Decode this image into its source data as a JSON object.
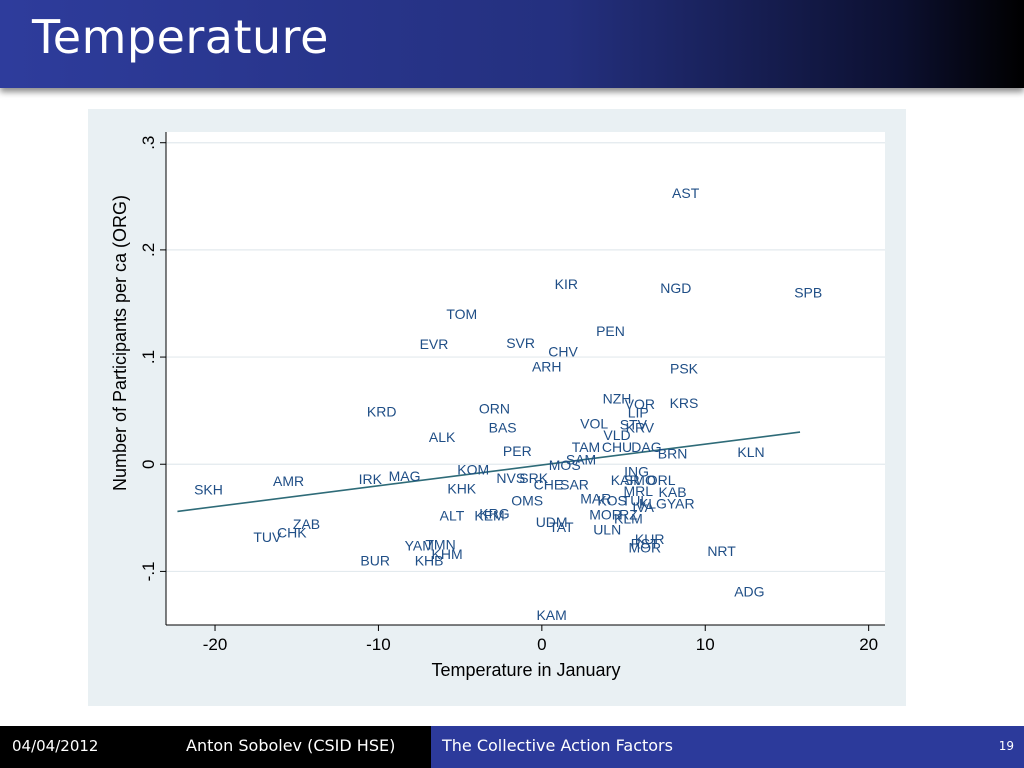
{
  "slide": {
    "title": "Temperature",
    "footer_date": "04/04/2012",
    "footer_author": "Anton Sobolev (CSID HSE)",
    "footer_topic": "The Collective Action Factors",
    "page_number": "19"
  },
  "colors": {
    "title_bar": "#2e3c9c",
    "footer_topic_bg": "#2c3a9b",
    "chart_bg": "#e9f0f3",
    "point_label": "#1f4e86",
    "fit_line": "#2e6b78"
  },
  "chart_data": {
    "type": "scatter",
    "title": "",
    "xlabel": "Temperature in January",
    "ylabel": "Number of Participants per ca (ORG)",
    "xlim": [
      -23,
      21
    ],
    "ylim": [
      -0.15,
      0.31
    ],
    "xticks": [
      {
        "value": -20,
        "label": "-20"
      },
      {
        "value": -10,
        "label": "-10"
      },
      {
        "value": 0,
        "label": "0"
      },
      {
        "value": 10,
        "label": "10"
      },
      {
        "value": 20,
        "label": "20"
      }
    ],
    "yticks": [
      {
        "value": -0.1,
        "label": "-.1"
      },
      {
        "value": 0,
        "label": "0"
      },
      {
        "value": 0.1,
        "label": ".1"
      },
      {
        "value": 0.2,
        "label": ".2"
      },
      {
        "value": 0.3,
        "label": ".3"
      }
    ],
    "grid": true,
    "fit_line": {
      "x": [
        -22.3,
        15.8
      ],
      "y": [
        -0.044,
        0.03
      ]
    },
    "points": [
      {
        "label": "AST",
        "x": 8.8,
        "y": 0.252
      },
      {
        "label": "KIR",
        "x": 1.5,
        "y": 0.167
      },
      {
        "label": "NGD",
        "x": 8.2,
        "y": 0.163
      },
      {
        "label": "SPB",
        "x": 16.3,
        "y": 0.159
      },
      {
        "label": "TOM",
        "x": -4.9,
        "y": 0.139
      },
      {
        "label": "PEN",
        "x": 4.2,
        "y": 0.123
      },
      {
        "label": "EVR",
        "x": -6.6,
        "y": 0.111
      },
      {
        "label": "SVR",
        "x": -1.3,
        "y": 0.112
      },
      {
        "label": "CHV",
        "x": 1.3,
        "y": 0.104
      },
      {
        "label": "ARH",
        "x": 0.3,
        "y": 0.09
      },
      {
        "label": "PSK",
        "x": 8.7,
        "y": 0.088
      },
      {
        "label": "NZH",
        "x": 4.6,
        "y": 0.06
      },
      {
        "label": "VOR",
        "x": 6.0,
        "y": 0.055
      },
      {
        "label": "KRS",
        "x": 8.7,
        "y": 0.056
      },
      {
        "label": "LIP",
        "x": 5.9,
        "y": 0.047
      },
      {
        "label": "KRD",
        "x": -9.8,
        "y": 0.048
      },
      {
        "label": "ORN",
        "x": -2.9,
        "y": 0.051
      },
      {
        "label": "VOL",
        "x": 3.2,
        "y": 0.037
      },
      {
        "label": "STV",
        "x": 5.6,
        "y": 0.036
      },
      {
        "label": "KRV",
        "x": 6.0,
        "y": 0.033
      },
      {
        "label": "BAS",
        "x": -2.4,
        "y": 0.033
      },
      {
        "label": "VLD",
        "x": 4.6,
        "y": 0.026
      },
      {
        "label": "ALK",
        "x": -6.1,
        "y": 0.024
      },
      {
        "label": "TAM",
        "x": 2.7,
        "y": 0.015
      },
      {
        "label": "CHU",
        "x": 4.6,
        "y": 0.015
      },
      {
        "label": "DAG",
        "x": 6.4,
        "y": 0.015
      },
      {
        "label": "KLN",
        "x": 12.8,
        "y": 0.01
      },
      {
        "label": "BRN",
        "x": 8.0,
        "y": 0.009
      },
      {
        "label": "PER",
        "x": -1.5,
        "y": 0.011
      },
      {
        "label": "SAM",
        "x": 2.4,
        "y": 0.003
      },
      {
        "label": "MOS",
        "x": 1.4,
        "y": -0.002
      },
      {
        "label": "KOM",
        "x": -4.2,
        "y": -0.006
      },
      {
        "label": "ING",
        "x": 5.8,
        "y": -0.008
      },
      {
        "label": "MAG",
        "x": -8.4,
        "y": -0.012
      },
      {
        "label": "IRK",
        "x": -10.5,
        "y": -0.015
      },
      {
        "label": "NVS",
        "x": -1.9,
        "y": -0.014
      },
      {
        "label": "SRK",
        "x": -0.5,
        "y": -0.014
      },
      {
        "label": "AMR",
        "x": -15.5,
        "y": -0.017
      },
      {
        "label": "KAR",
        "x": 5.1,
        "y": -0.016
      },
      {
        "label": "SMO",
        "x": 6.0,
        "y": -0.016
      },
      {
        "label": "ORL",
        "x": 7.3,
        "y": -0.016
      },
      {
        "label": "CHE",
        "x": 0.4,
        "y": -0.02
      },
      {
        "label": "SAR",
        "x": 2.0,
        "y": -0.02
      },
      {
        "label": "SKH",
        "x": -20.4,
        "y": -0.025
      },
      {
        "label": "KHK",
        "x": -4.9,
        "y": -0.024
      },
      {
        "label": "MRL",
        "x": 5.9,
        "y": -0.026
      },
      {
        "label": "KAB",
        "x": 8.0,
        "y": -0.027
      },
      {
        "label": "MAR",
        "x": 3.3,
        "y": -0.033
      },
      {
        "label": "KOS",
        "x": 4.3,
        "y": -0.035
      },
      {
        "label": "TUL",
        "x": 5.7,
        "y": -0.035
      },
      {
        "label": "KLG",
        "x": 6.8,
        "y": -0.038
      },
      {
        "label": "YAR",
        "x": 8.5,
        "y": -0.038
      },
      {
        "label": "OMS",
        "x": -0.9,
        "y": -0.035
      },
      {
        "label": "IVA",
        "x": 6.2,
        "y": -0.041
      },
      {
        "label": "ALT",
        "x": -5.5,
        "y": -0.049
      },
      {
        "label": "KEM",
        "x": -3.2,
        "y": -0.049
      },
      {
        "label": "KRG",
        "x": -2.9,
        "y": -0.047
      },
      {
        "label": "MOR",
        "x": 3.9,
        "y": -0.048
      },
      {
        "label": "RZ",
        "x": 5.3,
        "y": -0.048
      },
      {
        "label": "KLM",
        "x": 5.3,
        "y": -0.052
      },
      {
        "label": "UDM",
        "x": 0.6,
        "y": -0.055
      },
      {
        "label": "ZAB",
        "x": -14.4,
        "y": -0.057
      },
      {
        "label": "TAT",
        "x": 1.2,
        "y": -0.06
      },
      {
        "label": "ULN",
        "x": 4.0,
        "y": -0.062
      },
      {
        "label": "CHK",
        "x": -15.3,
        "y": -0.065
      },
      {
        "label": "TUV",
        "x": -16.8,
        "y": -0.069
      },
      {
        "label": "KUR",
        "x": 6.6,
        "y": -0.071
      },
      {
        "label": "RST",
        "x": 6.3,
        "y": -0.075
      },
      {
        "label": "MOR",
        "x": 6.3,
        "y": -0.079
      },
      {
        "label": "TMN",
        "x": -6.2,
        "y": -0.076
      },
      {
        "label": "YAM",
        "x": -7.5,
        "y": -0.077
      },
      {
        "label": "NRT",
        "x": 11.0,
        "y": -0.082
      },
      {
        "label": "KHM",
        "x": -5.8,
        "y": -0.085
      },
      {
        "label": "KHB",
        "x": -6.9,
        "y": -0.091
      },
      {
        "label": "BUR",
        "x": -10.2,
        "y": -0.091
      },
      {
        "label": "ADG",
        "x": 12.7,
        "y": -0.12
      },
      {
        "label": "KAM",
        "x": 0.6,
        "y": -0.142
      }
    ]
  }
}
